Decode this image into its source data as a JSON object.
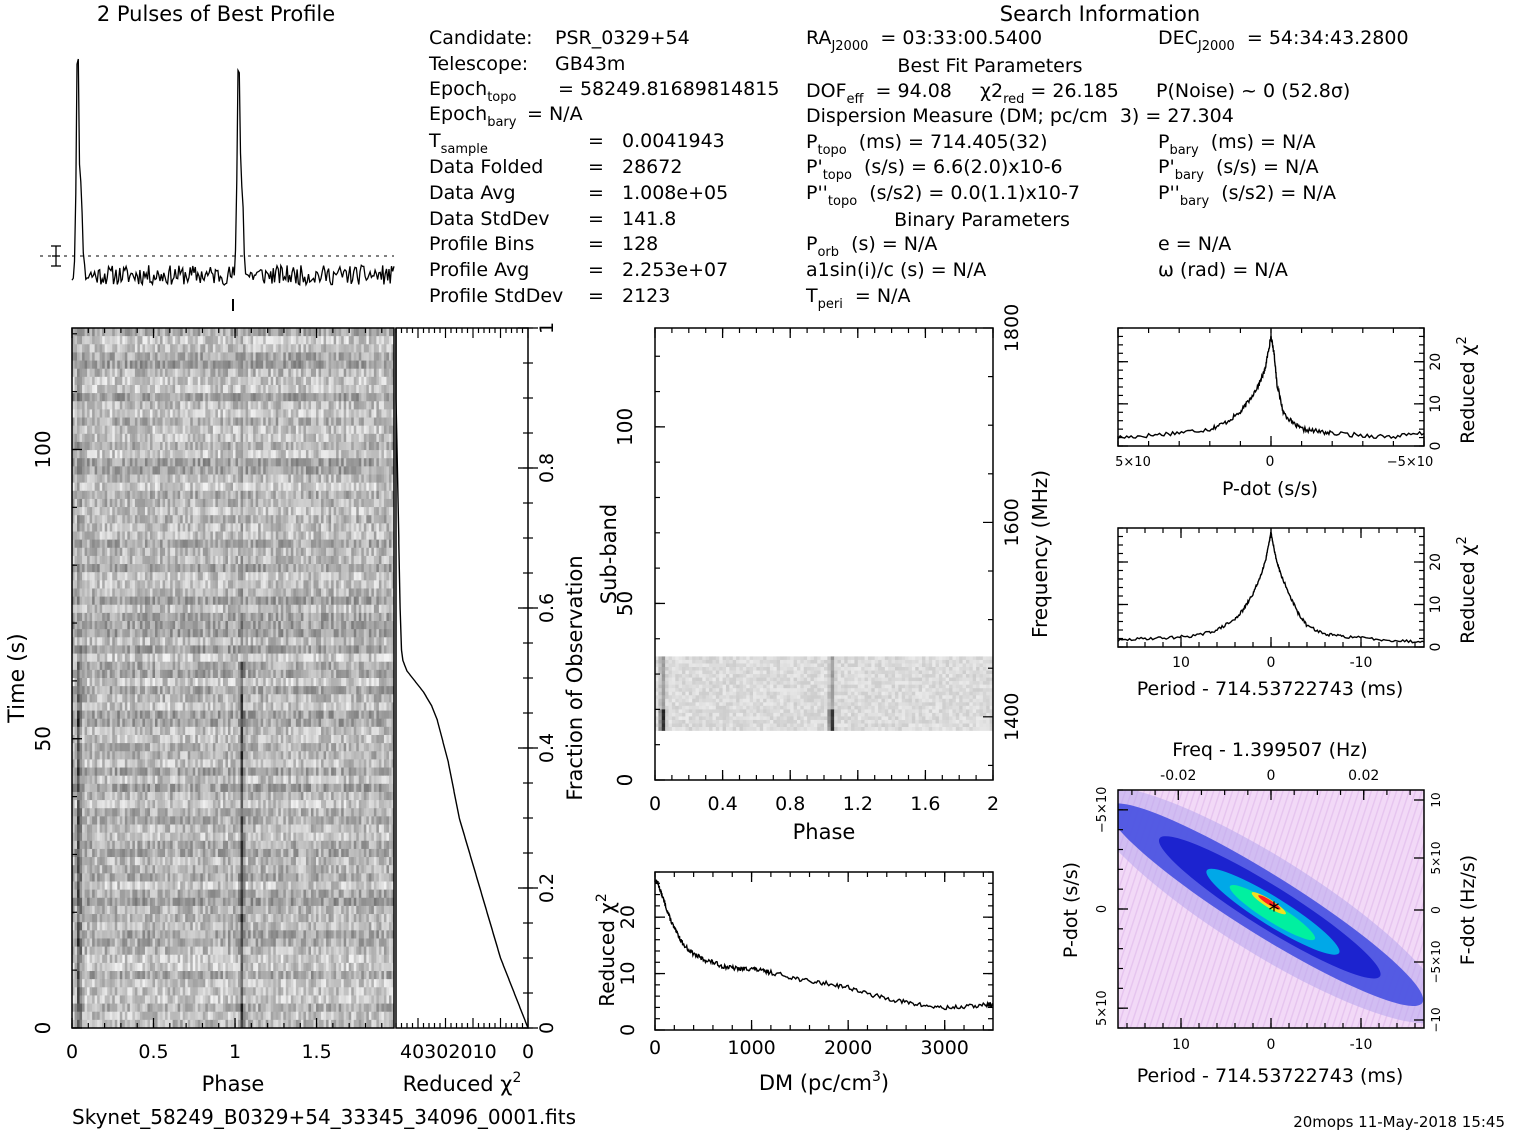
{
  "header": {
    "profile_title": "2 Pulses of Best Profile",
    "search_title": "Search Information",
    "best_fit_title": "Best Fit Parameters",
    "binary_title": "Binary Parameters",
    "footer_file": "Skynet_58249_B0329+54_33345_34096_0001.fits",
    "footer_stamp": "20mops 11-May-2018 15:45"
  },
  "info_col1": [
    {
      "label": "Candidate:",
      "sub": "",
      "value": "PSR_0329+54"
    },
    {
      "label": "Telescope:",
      "sub": "",
      "value": "GB43m"
    },
    {
      "label": "Epoch",
      "sub": "topo",
      "value": "= 58249.81689814815"
    },
    {
      "label": "Epoch",
      "sub": "bary",
      "value": "= N/A"
    },
    {
      "label": "T",
      "sub": "sample",
      "value": "0.0041943"
    },
    {
      "label": "Data Folded",
      "sub": "",
      "value": "28672"
    },
    {
      "label": "Data Avg",
      "sub": "",
      "value": "1.008e+05"
    },
    {
      "label": "Data StdDev",
      "sub": "",
      "value": "141.8"
    },
    {
      "label": "Profile Bins",
      "sub": "",
      "value": "128"
    },
    {
      "label": "Profile Avg",
      "sub": "",
      "value": "2.253e+07"
    },
    {
      "label": "Profile StdDev",
      "sub": "",
      "value": "2123"
    }
  ],
  "info_col2": [
    {
      "label": "RA",
      "sub": "J2000",
      "value": "= 03:33:00.5400"
    },
    {
      "label": "DOF",
      "sub": "eff",
      "value": "= 94.08"
    },
    {
      "label": "Dispersion Measure (DM; pc/cm",
      "sub": "",
      "value": "3) = 27.304"
    },
    {
      "label": "P",
      "sub": "topo",
      "value": "(ms) =  714.405(32)"
    },
    {
      "label": "P'",
      "sub": "topo",
      "value": "(s/s) =  6.6(2.0)x10-6"
    },
    {
      "label": "P''",
      "sub": "topo",
      "value": "(s/s2) = 0.0(1.1)x10-7"
    },
    {
      "label": "P",
      "sub": "orb",
      "value": "(s) = N/A"
    },
    {
      "label": "a1sin(i)/c (s) = N/A",
      "sub": "",
      "value": ""
    },
    {
      "label": "T",
      "sub": "peri",
      "value": "= N/A"
    }
  ],
  "info_chi": {
    "label": "χ2",
    "sub": "red",
    "value": "= 26.185"
  },
  "info_noise": "P(Noise) ~ 0   (52.8σ)",
  "info_col3": [
    {
      "label": "DEC",
      "sub": "J2000",
      "value": "= 54:34:43.2800"
    },
    {
      "label": "P",
      "sub": "bary",
      "value": "(ms) = N/A"
    },
    {
      "label": "P'",
      "sub": "bary",
      "value": "(s/s) = N/A"
    },
    {
      "label": "P''",
      "sub": "bary",
      "value": "(s/s2) = N/A"
    },
    {
      "label": "e = N/A",
      "sub": "",
      "value": ""
    },
    {
      "label": "ω (rad) = N/A",
      "sub": "",
      "value": ""
    }
  ],
  "chart_data": [
    {
      "id": "profile",
      "type": "line",
      "title": "2 Pulses of Best Profile",
      "x_range": [
        0,
        2
      ],
      "description_points": {
        "x": [
          0.0,
          0.02,
          0.04,
          0.05,
          0.06,
          0.08,
          0.5,
          1.0,
          1.02,
          1.04,
          1.05,
          1.06,
          1.08,
          1.5,
          2.0
        ],
        "y": [
          0.15,
          0.3,
          0.98,
          0.6,
          0.12,
          0.05,
          0.04,
          0.14,
          0.3,
          0.98,
          0.6,
          0.12,
          0.05,
          0.04,
          0.05
        ]
      }
    },
    {
      "id": "time-phase",
      "type": "heatmap",
      "xlabel": "Phase",
      "ylabel": "Time (s)",
      "x_ticks": [
        "0",
        "0.5",
        "1",
        "1.5"
      ],
      "y_ticks": [
        "0",
        "50",
        "100"
      ],
      "x_range": [
        0,
        1.975
      ],
      "y_range": [
        0,
        121
      ]
    },
    {
      "id": "reduced-chi-vs-time",
      "type": "line",
      "xlabel": "Reduced χ2",
      "ylabel": "Fraction of Observation",
      "x_ticks": [
        "40",
        "30",
        "20",
        "10",
        "0"
      ],
      "y_ticks": [
        "0",
        "0.2",
        "0.4",
        "0.6",
        "0.8",
        "1"
      ],
      "x_range": [
        48,
        0
      ],
      "y_range": [
        0,
        1
      ],
      "x": [
        0,
        1.5,
        4,
        7,
        10,
        13,
        16,
        19,
        22,
        25,
        27,
        29,
        31,
        33,
        35,
        38,
        40,
        42,
        44,
        45.5,
        46,
        46.5,
        47,
        47.5,
        48,
        48
      ],
      "y": [
        0,
        0.015,
        0.04,
        0.07,
        0.1,
        0.14,
        0.18,
        0.22,
        0.26,
        0.3,
        0.34,
        0.38,
        0.41,
        0.44,
        0.46,
        0.48,
        0.49,
        0.5,
        0.51,
        0.525,
        0.54,
        0.6,
        0.7,
        0.8,
        0.9,
        1.0
      ]
    },
    {
      "id": "subband-phase",
      "type": "heatmap",
      "xlabel": "Phase",
      "ylabel": "Sub-band",
      "y2label": "Frequency (MHz)",
      "x_ticks": [
        "0",
        "0.4",
        "0.8",
        "1.2",
        "1.6",
        "2"
      ],
      "y_ticks": [
        "0",
        "50",
        "100"
      ],
      "y2_ticks": [
        "1400",
        "1600",
        "1800"
      ],
      "x_range": [
        0,
        2
      ],
      "y_range": [
        0,
        128
      ],
      "y2_range": [
        1335,
        1800
      ]
    },
    {
      "id": "dm-chi",
      "type": "line",
      "xlabel": "DM (pc/cm3)",
      "ylabel": "Reduced χ2",
      "x_ticks": [
        "0",
        "1000",
        "2000",
        "3000"
      ],
      "y_ticks": [
        "0",
        "10",
        "20"
      ],
      "x_range": [
        0,
        3500
      ],
      "y_range": [
        0,
        28
      ],
      "x": [
        0,
        30,
        60,
        100,
        150,
        200,
        250,
        300,
        400,
        500,
        600,
        700,
        800,
        900,
        1000,
        1100,
        1200,
        1400,
        1600,
        1800,
        2000,
        2200,
        2400,
        2600,
        2800,
        3000,
        3200,
        3400,
        3500
      ],
      "y": [
        26.5,
        26,
        24.5,
        22.5,
        20,
        18,
        16.5,
        15,
        13.5,
        12.5,
        12,
        11.3,
        11,
        10.8,
        10.9,
        10.5,
        10.2,
        9.4,
        8.6,
        8.2,
        7.6,
        6.4,
        5.6,
        4.9,
        4.3,
        3.9,
        4.1,
        4.4,
        4.6
      ]
    },
    {
      "id": "pdot-chi",
      "type": "line",
      "xlabel": "P-dot (s/s)",
      "ylabel": "Reduced χ2",
      "x_ticks": [
        "5x10-4",
        "0",
        "-5x10-4"
      ],
      "y_ticks": [
        "0",
        "10",
        "20"
      ],
      "x_range": [
        0.0005,
        -0.0005
      ],
      "y_range": [
        0,
        28
      ],
      "x": [
        0.0005,
        0.0004,
        0.0003,
        0.0002,
        0.00015,
        0.0001,
        7e-05,
        4e-05,
        2e-05,
        1e-05,
        0.0,
        -1e-05,
        -2e-05,
        -4e-05,
        -7e-05,
        -0.0001,
        -0.00015,
        -0.0002,
        -0.0003,
        -0.0004,
        -0.0005
      ],
      "y": [
        2.0,
        2.5,
        3.2,
        4.0,
        5.5,
        8.0,
        11.0,
        14.5,
        18.0,
        22.0,
        26.0,
        22.0,
        14.5,
        8.0,
        5.5,
        4.0,
        3.5,
        3.0,
        2.5,
        2.2,
        3.0
      ]
    },
    {
      "id": "period-chi",
      "type": "line",
      "xlabel": "Period - 714.53722743 (ms)",
      "ylabel": "Reduced χ2",
      "x_ticks": [
        "10",
        "0",
        "-10"
      ],
      "y_ticks": [
        "0",
        "10",
        "20"
      ],
      "x_range": [
        17,
        -17
      ],
      "y_range": [
        0,
        28
      ],
      "x": [
        17,
        14,
        11,
        8,
        6,
        4,
        3,
        2,
        1.2,
        0.6,
        0.2,
        0,
        -0.2,
        -0.6,
        -1.2,
        -2,
        -3,
        -4,
        -6,
        -8,
        -11,
        -14,
        -17
      ],
      "y": [
        1.5,
        2.0,
        2.2,
        2.8,
        4.0,
        6.5,
        9.0,
        12.5,
        16.5,
        20.5,
        24.5,
        27.0,
        24.5,
        20.5,
        16.5,
        12.5,
        8.0,
        5.0,
        3.0,
        2.5,
        2.0,
        1.5,
        1.2
      ]
    },
    {
      "id": "p-pdot-plane",
      "type": "heatmap",
      "xlabel": "Period - 714.53722743 (ms)",
      "ylabel": "P-dot (s/s)",
      "x2label": "Freq - 1.399507 (Hz)",
      "y2label": "F-dot (Hz/s)",
      "x_ticks": [
        "10",
        "0",
        "-10"
      ],
      "y_ticks": [
        "-5x10-4",
        "0",
        "5x10-4"
      ],
      "x2_ticks": [
        "-0.02",
        "0",
        "0.02"
      ],
      "y2_ticks": [
        "10-3",
        "5x10-4",
        "0",
        "-5x10-4",
        "-10-3"
      ],
      "x_range": [
        17,
        -17
      ],
      "y_range": [
        -0.0005,
        0.0005
      ]
    }
  ],
  "colors": {
    "ink": "#000000",
    "background": "#ffffff",
    "heat_low": "#f4d8f8",
    "heat_mid": "#1a2fd6",
    "heat_high": "#00f0a0",
    "heat_peak": "#ff2020"
  }
}
